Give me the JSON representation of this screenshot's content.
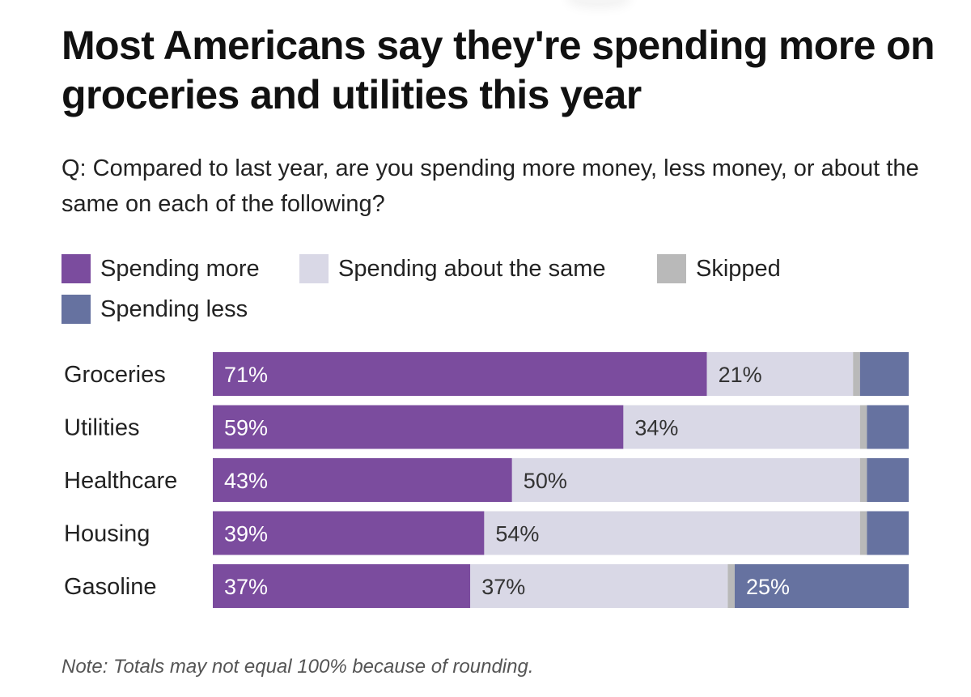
{
  "chart_data": {
    "type": "bar",
    "orientation": "horizontal",
    "stacked": true,
    "title": "Most Americans say they're spending more on groceries and utilities this year",
    "subtitle": "Q: Compared to last year, are you spending more money, less money, or about the same on each of the following?",
    "note": "Note: Totals may not equal 100% because of rounding.",
    "categories": [
      "Groceries",
      "Utilities",
      "Healthcare",
      "Housing",
      "Gasoline"
    ],
    "series": [
      {
        "name": "Spending more",
        "color": "#7b4c9e",
        "values": [
          71,
          59,
          43,
          39,
          37
        ],
        "labels": [
          "71%",
          "59%",
          "43%",
          "39%",
          "37%"
        ]
      },
      {
        "name": "Spending about the same",
        "color": "#d9d8e6",
        "values": [
          21,
          34,
          50,
          54,
          37
        ],
        "labels": [
          "21%",
          "34%",
          "50%",
          "54%",
          "37%"
        ]
      },
      {
        "name": "Skipped",
        "color": "#b9b9b9",
        "values": [
          1,
          1,
          1,
          1,
          1
        ],
        "labels": [
          "",
          "",
          "",
          "",
          ""
        ]
      },
      {
        "name": "Spending less",
        "color": "#6672a0",
        "values": [
          7,
          6,
          6,
          6,
          25
        ],
        "labels": [
          "",
          "",
          "",
          "",
          "25%"
        ]
      }
    ],
    "legend_order": [
      "Spending more",
      "Spending about the same",
      "Skipped",
      "Spending less"
    ],
    "xlim": [
      0,
      100
    ],
    "xlabel": "",
    "ylabel": "",
    "grid": false,
    "legend_position": "top-left"
  }
}
